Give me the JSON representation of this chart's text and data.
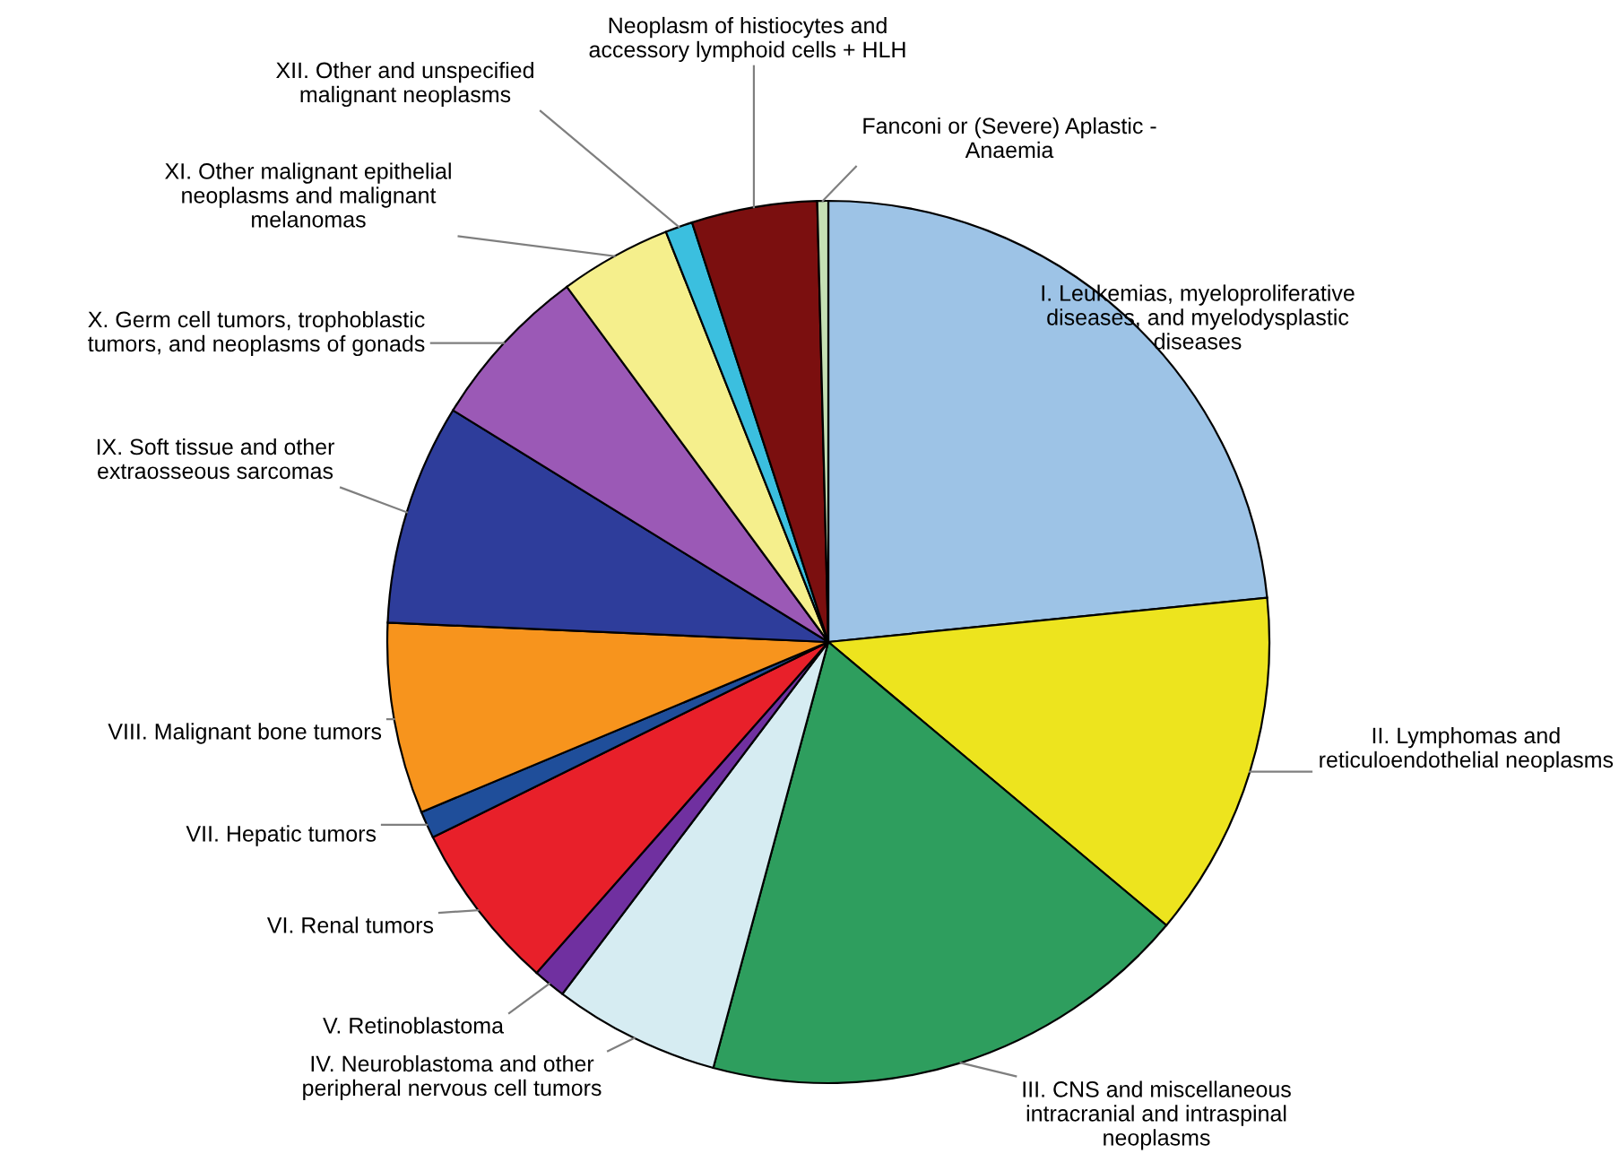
{
  "chart_data": {
    "type": "pie",
    "categories": [
      "I. Leukemias, myeloproliferative\ndiseases, and myelodysplastic\ndiseases",
      "II. Lymphomas and\nreticuloendothelial neoplasms",
      "III. CNS and miscellaneous\nintracranial and intraspinal\nneoplasms",
      "IV. Neuroblastoma and other\nperipheral nervous cell tumors",
      "V. Retinoblastoma",
      "VI. Renal tumors",
      "VII. Hepatic tumors",
      "VIII. Malignant bone tumors",
      "IX. Soft tissue and other\nextraosseous sarcomas",
      "X. Germ cell tumors, trophoblastic\ntumors, and neoplasms of gonads",
      "XI. Other malignant epithelial\nneoplasms and malignant\nmelanomas",
      "XII. Other and unspecified\nmalignant neoplasms",
      "Neoplasm of histiocytes and\naccessory lymphoid cells + HLH",
      "Fanconi or (Severe) Aplastic -\nAnaemia"
    ],
    "values": [
      23.4,
      12.7,
      18.1,
      6.1,
      1.2,
      6.2,
      1.0,
      7.0,
      8.1,
      6.1,
      4.1,
      1.0,
      4.6,
      0.4
    ],
    "colors": [
      "#9dc3e6",
      "#ede41e",
      "#2e9e5e",
      "#d6ecf2",
      "#7030a0",
      "#e8202a",
      "#1f4e9a",
      "#f7941d",
      "#2e3d9b",
      "#9b59b6",
      "#f5ef8c",
      "#3bbfdf",
      "#7b0f0f",
      "#c5e0b4"
    ],
    "legend": false
  }
}
